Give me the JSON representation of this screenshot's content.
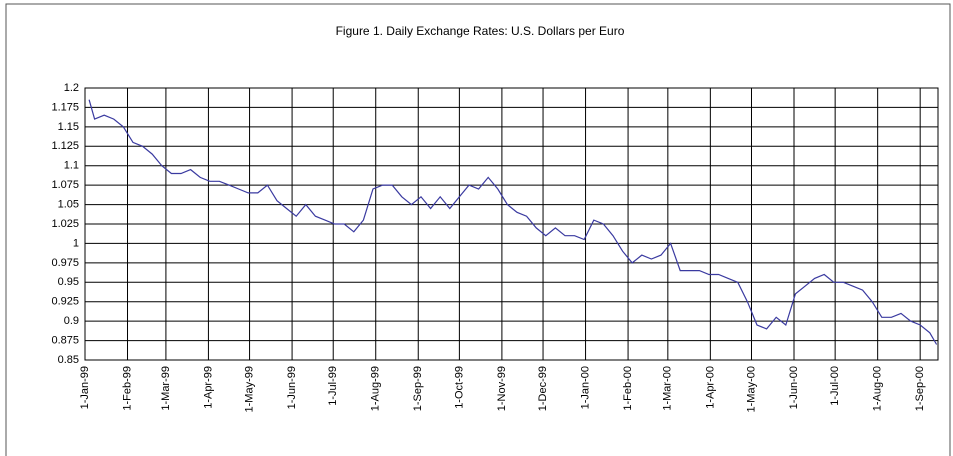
{
  "chart_data": {
    "type": "line",
    "title": "Figure 1. Daily Exchange Rates: U.S. Dollars per Euro",
    "x": [
      "4-Jan-99",
      "8-Jan-99",
      "15-Jan-99",
      "22-Jan-99",
      "29-Jan-99",
      "5-Feb-99",
      "12-Feb-99",
      "19-Feb-99",
      "26-Feb-99",
      "5-Mar-99",
      "12-Mar-99",
      "19-Mar-99",
      "26-Mar-99",
      "2-Apr-99",
      "9-Apr-99",
      "16-Apr-99",
      "23-Apr-99",
      "30-Apr-99",
      "7-May-99",
      "14-May-99",
      "21-May-99",
      "28-May-99",
      "4-Jun-99",
      "11-Jun-99",
      "18-Jun-99",
      "25-Jun-99",
      "2-Jul-99",
      "9-Jul-99",
      "16-Jul-99",
      "23-Jul-99",
      "30-Jul-99",
      "6-Aug-99",
      "13-Aug-99",
      "20-Aug-99",
      "27-Aug-99",
      "3-Sep-99",
      "10-Sep-99",
      "17-Sep-99",
      "24-Sep-99",
      "1-Oct-99",
      "8-Oct-99",
      "15-Oct-99",
      "22-Oct-99",
      "29-Oct-99",
      "5-Nov-99",
      "12-Nov-99",
      "19-Nov-99",
      "26-Nov-99",
      "3-Dec-99",
      "10-Dec-99",
      "17-Dec-99",
      "24-Dec-99",
      "31-Dec-99",
      "7-Jan-00",
      "14-Jan-00",
      "21-Jan-00",
      "28-Jan-00",
      "4-Feb-00",
      "11-Feb-00",
      "18-Feb-00",
      "25-Feb-00",
      "3-Mar-00",
      "10-Mar-00",
      "17-Mar-00",
      "24-Mar-00",
      "31-Mar-00",
      "7-Apr-00",
      "14-Apr-00",
      "21-Apr-00",
      "28-Apr-00",
      "5-May-00",
      "12-May-00",
      "19-May-00",
      "26-May-00",
      "2-Jun-00",
      "9-Jun-00",
      "16-Jun-00",
      "23-Jun-00",
      "30-Jun-00",
      "7-Jul-00",
      "14-Jul-00",
      "21-Jul-00",
      "28-Jul-00",
      "4-Aug-00",
      "11-Aug-00",
      "18-Aug-00",
      "25-Aug-00",
      "1-Sep-00",
      "8-Sep-00",
      "13-Sep-00"
    ],
    "series": [
      {
        "name": "USD per EUR",
        "color": "#3a3aa0",
        "values": [
          1.185,
          1.16,
          1.165,
          1.16,
          1.15,
          1.13,
          1.125,
          1.115,
          1.1,
          1.09,
          1.09,
          1.095,
          1.085,
          1.08,
          1.08,
          1.075,
          1.07,
          1.065,
          1.065,
          1.075,
          1.055,
          1.045,
          1.035,
          1.05,
          1.035,
          1.03,
          1.025,
          1.025,
          1.015,
          1.03,
          1.07,
          1.075,
          1.075,
          1.06,
          1.05,
          1.06,
          1.045,
          1.06,
          1.045,
          1.06,
          1.075,
          1.07,
          1.085,
          1.07,
          1.05,
          1.04,
          1.035,
          1.02,
          1.01,
          1.02,
          1.01,
          1.01,
          1.005,
          1.03,
          1.025,
          1.01,
          0.99,
          0.975,
          0.985,
          0.98,
          0.985,
          1.0,
          0.965,
          0.965,
          0.965,
          0.96,
          0.96,
          0.955,
          0.95,
          0.925,
          0.895,
          0.89,
          0.905,
          0.895,
          0.935,
          0.945,
          0.955,
          0.96,
          0.95,
          0.95,
          0.945,
          0.94,
          0.925,
          0.905,
          0.905,
          0.91,
          0.9,
          0.895,
          0.885,
          0.87
        ]
      }
    ],
    "xlim": [
      "1-Jan-99",
      "14-Sep-00"
    ],
    "xticks": [
      "1-Jan-99",
      "1-Feb-99",
      "1-Mar-99",
      "1-Apr-99",
      "1-May-99",
      "1-Jun-99",
      "1-Jul-99",
      "1-Aug-99",
      "1-Sep-99",
      "1-Oct-99",
      "1-Nov-99",
      "1-Dec-99",
      "1-Jan-00",
      "1-Feb-00",
      "1-Mar-00",
      "1-Apr-00",
      "1-May-00",
      "1-Jun-00",
      "1-Jul-00",
      "1-Aug-00",
      "1-Sep-00"
    ],
    "ylim": [
      0.85,
      1.2
    ],
    "yticks": [
      0.85,
      0.875,
      0.9,
      0.925,
      0.95,
      0.975,
      1,
      1.025,
      1.05,
      1.075,
      1.1,
      1.125,
      1.15,
      1.175,
      1.2
    ],
    "grid": true
  }
}
